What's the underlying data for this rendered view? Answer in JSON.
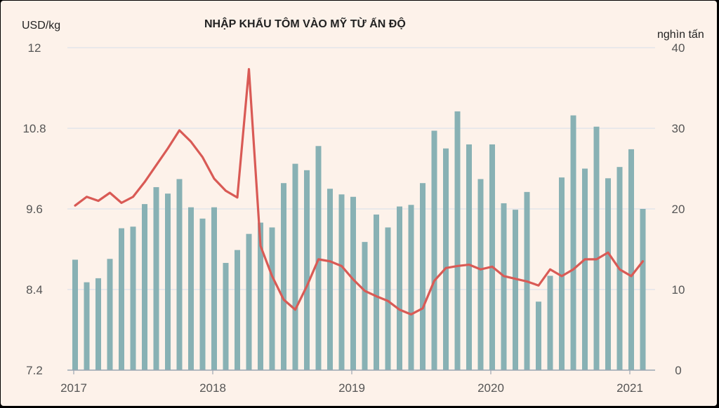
{
  "chart_data": {
    "type": "bar+line",
    "title": "NHẬP KHẨU TÔM VÀO MỸ TỪ ẤN ĐỘ",
    "y_left_label": "USD/kg",
    "y_right_label": "nghìn tấn",
    "y_left_ticks": [
      "12",
      "10.8",
      "9.6",
      "8.4",
      "7.2"
    ],
    "y_right_ticks": [
      "40",
      "30",
      "20",
      "10",
      "0"
    ],
    "ylim_left": [
      7.2,
      12
    ],
    "ylim_right": [
      0,
      40
    ],
    "x_tick_labels": [
      "2017",
      "2018",
      "2019",
      "2020",
      "2021"
    ],
    "grid": true,
    "x": [
      "2017-01",
      "2017-02",
      "2017-03",
      "2017-04",
      "2017-05",
      "2017-06",
      "2017-07",
      "2017-08",
      "2017-09",
      "2017-10",
      "2017-11",
      "2017-12",
      "2018-01",
      "2018-02",
      "2018-03",
      "2018-04",
      "2018-05",
      "2018-06",
      "2018-07",
      "2018-08",
      "2018-09",
      "2018-10",
      "2018-11",
      "2018-12",
      "2019-01",
      "2019-02",
      "2019-03",
      "2019-04",
      "2019-05",
      "2019-06",
      "2019-07",
      "2019-08",
      "2019-09",
      "2019-10",
      "2019-11",
      "2019-12",
      "2020-01",
      "2020-02",
      "2020-03",
      "2020-04",
      "2020-05",
      "2020-06",
      "2020-07",
      "2020-08",
      "2020-09",
      "2020-10",
      "2020-11",
      "2020-12",
      "2021-01",
      "2021-02"
    ],
    "series": [
      {
        "type": "bar",
        "axis": "right",
        "color": "#88b1b4",
        "values": [
          13.7,
          10.9,
          11.4,
          13.8,
          17.6,
          17.8,
          20.6,
          22.7,
          21.9,
          23.7,
          20.2,
          18.8,
          20.2,
          13.3,
          14.9,
          16.9,
          18.3,
          17.7,
          23.2,
          25.6,
          24.8,
          27.8,
          22.5,
          21.8,
          21.5,
          15.9,
          19.3,
          17.7,
          20.3,
          20.5,
          23.2,
          29.7,
          27.5,
          32.1,
          28.0,
          23.7,
          28.0,
          20.7,
          19.9,
          22.1,
          8.5,
          11.7,
          23.9,
          31.6,
          25.0,
          30.2,
          23.8,
          25.2,
          27.4,
          20.0
        ]
      },
      {
        "type": "line",
        "axis": "left",
        "color": "#d95a55",
        "values": [
          9.65,
          9.78,
          9.72,
          9.84,
          9.69,
          9.78,
          10.0,
          10.25,
          10.5,
          10.77,
          10.6,
          10.37,
          10.05,
          9.87,
          9.77,
          11.68,
          9.05,
          8.6,
          8.25,
          8.1,
          8.45,
          8.85,
          8.82,
          8.75,
          8.55,
          8.38,
          8.3,
          8.23,
          8.1,
          8.03,
          8.12,
          8.53,
          8.72,
          8.75,
          8.77,
          8.7,
          8.74,
          8.6,
          8.56,
          8.52,
          8.46,
          8.7,
          8.6,
          8.7,
          8.85,
          8.85,
          8.95,
          8.7,
          8.6,
          8.82
        ]
      }
    ]
  }
}
